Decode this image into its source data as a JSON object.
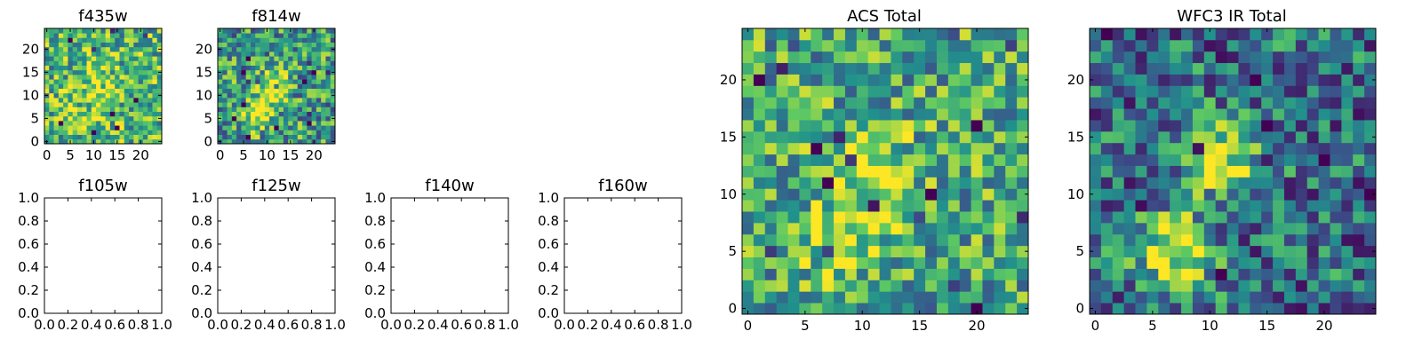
{
  "colormap": {
    "name": "viridis",
    "stops": [
      "#440154",
      "#3b528b",
      "#21918c",
      "#5ec962",
      "#fde725"
    ]
  },
  "chart_data": [
    {
      "type": "heatmap",
      "title": "f435w",
      "xlabel": "",
      "ylabel": "",
      "size": 25,
      "xlim": [
        -0.5,
        24.5
      ],
      "ylim": [
        -0.5,
        24.5
      ],
      "xticks": [
        0,
        5,
        10,
        15,
        20
      ],
      "yticks": [
        0,
        5,
        10,
        15,
        20
      ],
      "tick_labels_x": [
        "0",
        "5",
        "10",
        "15",
        "20"
      ],
      "tick_labels_y": [
        "0",
        "5",
        "10",
        "15",
        "20"
      ],
      "base": 0.66,
      "noise": 0.34,
      "seed": 11,
      "sources": [
        [
          11,
          12,
          0.18,
          3
        ],
        [
          9,
          5,
          0.12,
          3
        ]
      ]
    },
    {
      "type": "heatmap",
      "title": "f814w",
      "xlabel": "",
      "ylabel": "",
      "size": 25,
      "xlim": [
        -0.5,
        24.5
      ],
      "ylim": [
        -0.5,
        24.5
      ],
      "xticks": [
        0,
        5,
        10,
        15,
        20
      ],
      "yticks": [
        0,
        5,
        10,
        15,
        20
      ],
      "tick_labels_x": [
        "0",
        "5",
        "10",
        "15",
        "20"
      ],
      "tick_labels_y": [
        "0",
        "5",
        "10",
        "15",
        "20"
      ],
      "base": 0.55,
      "noise": 0.36,
      "seed": 23,
      "sources": [
        [
          11,
          12,
          0.45,
          2.4
        ],
        [
          8,
          6,
          0.45,
          2.4
        ]
      ]
    },
    {
      "type": "empty",
      "title": "f105w",
      "xlim": [
        0,
        1
      ],
      "ylim": [
        0,
        1
      ],
      "tick_labels_x": [
        "0.0",
        "0.2",
        "0.4",
        "0.6",
        "0.8",
        "1.0"
      ],
      "tick_labels_y": [
        "0.0",
        "0.2",
        "0.4",
        "0.6",
        "0.8",
        "1.0"
      ]
    },
    {
      "type": "empty",
      "title": "f125w",
      "xlim": [
        0,
        1
      ],
      "ylim": [
        0,
        1
      ],
      "tick_labels_x": [
        "0.0",
        "0.2",
        "0.4",
        "0.6",
        "0.8",
        "1.0"
      ],
      "tick_labels_y": [
        "0.0",
        "0.2",
        "0.4",
        "0.6",
        "0.8",
        "1.0"
      ]
    },
    {
      "type": "empty",
      "title": "f140w",
      "xlim": [
        0,
        1
      ],
      "ylim": [
        0,
        1
      ],
      "tick_labels_x": [
        "0.0",
        "0.2",
        "0.4",
        "0.6",
        "0.8",
        "1.0"
      ],
      "tick_labels_y": [
        "0.0",
        "0.2",
        "0.4",
        "0.6",
        "0.8",
        "1.0"
      ]
    },
    {
      "type": "empty",
      "title": "f160w",
      "xlim": [
        0,
        1
      ],
      "ylim": [
        0,
        1
      ],
      "tick_labels_x": [
        "0.0",
        "0.2",
        "0.4",
        "0.6",
        "0.8",
        "1.0"
      ],
      "tick_labels_y": [
        "0.0",
        "0.2",
        "0.4",
        "0.6",
        "0.8",
        "1.0"
      ]
    },
    {
      "type": "heatmap",
      "title": "ACS Total",
      "xlabel": "",
      "ylabel": "",
      "size": 25,
      "xlim": [
        -0.5,
        24.5
      ],
      "ylim": [
        -0.5,
        24.5
      ],
      "xticks": [
        0,
        5,
        10,
        15,
        20
      ],
      "yticks": [
        0,
        5,
        10,
        15,
        20
      ],
      "tick_labels_x": [
        "0",
        "5",
        "10",
        "15",
        "20"
      ],
      "tick_labels_y": [
        "0",
        "5",
        "10",
        "15",
        "20"
      ],
      "base": 0.6,
      "noise": 0.34,
      "seed": 37,
      "sources": [
        [
          11,
          12,
          0.32,
          2.6
        ],
        [
          8,
          6,
          0.26,
          2.6
        ]
      ]
    },
    {
      "type": "heatmap",
      "title": "WFC3 IR Total",
      "xlabel": "",
      "ylabel": "",
      "size": 25,
      "xlim": [
        -0.5,
        24.5
      ],
      "ylim": [
        -0.5,
        24.5
      ],
      "xticks": [
        0,
        5,
        10,
        15,
        20
      ],
      "yticks": [
        0,
        5,
        10,
        15,
        20
      ],
      "tick_labels_x": [
        "0",
        "5",
        "10",
        "15",
        "20"
      ],
      "tick_labels_y": [
        "0",
        "5",
        "10",
        "15",
        "20"
      ],
      "base": 0.38,
      "noise": 0.34,
      "seed": 53,
      "sources": [
        [
          11,
          13,
          0.55,
          2.3
        ],
        [
          7,
          5,
          0.6,
          2.3
        ]
      ]
    }
  ]
}
